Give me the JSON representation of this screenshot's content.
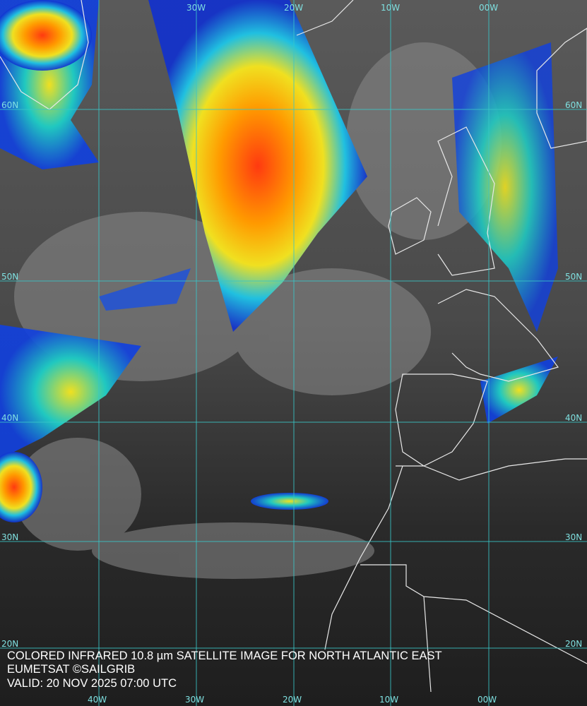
{
  "map": {
    "lon_labels_top": [
      "30W",
      "20W",
      "10W",
      "00W"
    ],
    "lon_labels_bottom": [
      "40W",
      "30W",
      "20W",
      "10W",
      "00W"
    ],
    "lat_labels_left": [
      "60N",
      "50N",
      "40N",
      "30N",
      "20N"
    ],
    "lat_labels_right": [
      "60N",
      "50N",
      "40N",
      "30N",
      "20N"
    ],
    "caption": [
      "COLORED INFRARED 10.8 µm SATELLITE IMAGE FOR NORTH ATLANTIC EAST",
      "EUMETSAT ©SAILGRIB",
      "VALID:  20 NOV 2025 07:00 UTC"
    ]
  }
}
